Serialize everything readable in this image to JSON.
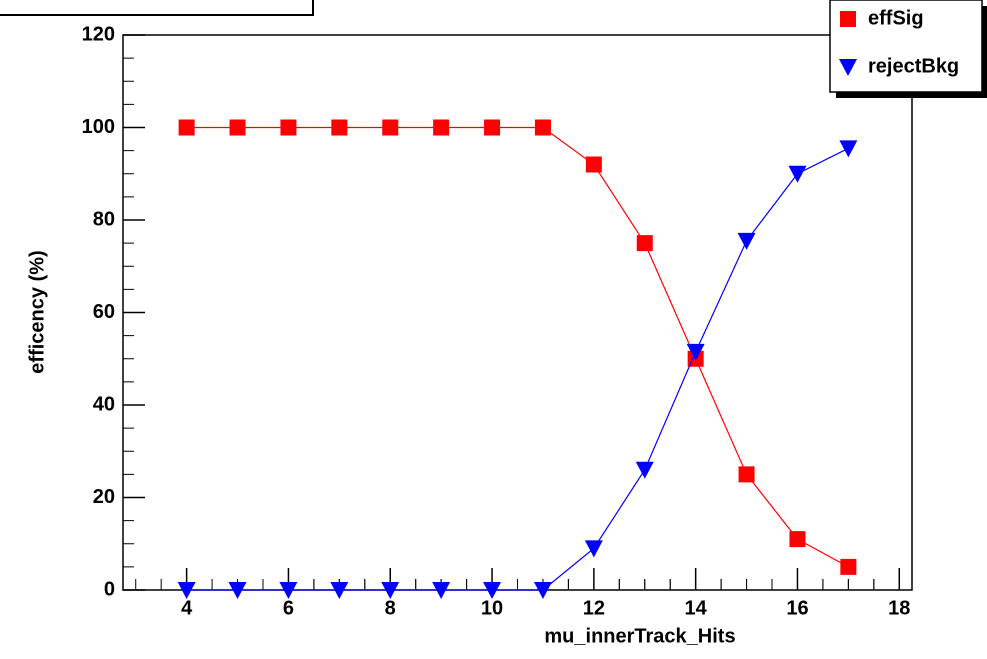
{
  "chart_data": {
    "type": "line",
    "x_label": "mu_innerTrack_Hits",
    "y_label": "efficency (%)",
    "x": [
      4,
      5,
      6,
      7,
      8,
      9,
      10,
      11,
      12,
      13,
      14,
      15,
      16,
      17
    ],
    "series": [
      {
        "name": "effSig",
        "color": "#ff0000",
        "marker": "square",
        "values": [
          100,
          100,
          100,
          100,
          100,
          100,
          100,
          100,
          92,
          75,
          50,
          25,
          11,
          5
        ]
      },
      {
        "name": "rejectBkg",
        "color": "#0000ff",
        "marker": "triangle-down",
        "values": [
          0,
          0,
          0,
          0,
          0,
          0,
          0,
          0,
          9,
          26,
          51.5,
          75.5,
          90,
          95.5
        ]
      }
    ],
    "xlim": [
      2.75,
      18.25
    ],
    "xticks": [
      4,
      6,
      8,
      10,
      12,
      14,
      16,
      18
    ],
    "ylim": [
      0,
      120
    ],
    "yticks": [
      0,
      20,
      40,
      60,
      80,
      100,
      120
    ],
    "legend": "top-right"
  }
}
